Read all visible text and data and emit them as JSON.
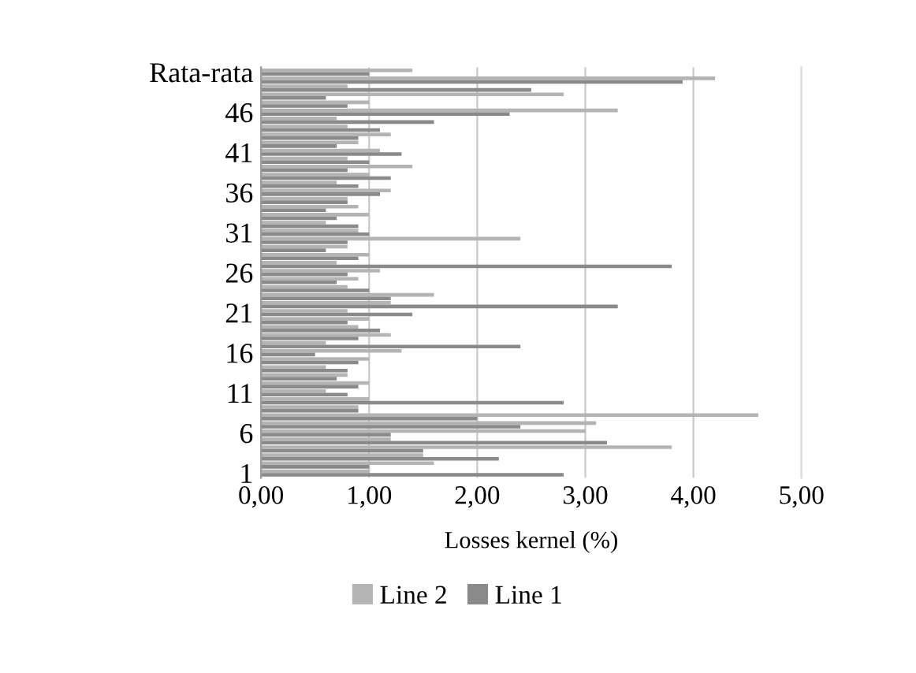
{
  "chart_data": {
    "type": "bar",
    "orientation": "horizontal",
    "xlabel": "Losses kernel (%)",
    "categories": [
      "Rata-rata",
      null,
      null,
      null,
      null,
      "46",
      null,
      null,
      null,
      null,
      "41",
      null,
      null,
      null,
      null,
      "36",
      null,
      null,
      null,
      null,
      "31",
      null,
      null,
      null,
      null,
      "26",
      null,
      null,
      null,
      null,
      "21",
      null,
      null,
      null,
      null,
      "16",
      null,
      null,
      null,
      null,
      "11",
      null,
      null,
      null,
      null,
      "6",
      null,
      null,
      null,
      null,
      "1"
    ],
    "series": [
      {
        "name": "Line 2",
        "color": "#b4b4b4",
        "values": [
          1.4,
          4.2,
          0.8,
          2.8,
          1.0,
          3.3,
          0.7,
          0.8,
          1.2,
          0.9,
          1.1,
          0.8,
          1.4,
          1.0,
          0.7,
          1.2,
          0.8,
          0.9,
          1.0,
          0.6,
          0.9,
          2.4,
          0.8,
          1.0,
          0.7,
          1.1,
          0.9,
          0.8,
          1.6,
          1.2,
          0.8,
          1.0,
          0.9,
          1.2,
          0.6,
          1.3,
          1.0,
          0.6,
          0.8,
          1.0,
          0.6,
          1.0,
          0.9,
          4.6,
          3.1,
          3.0,
          1.2,
          3.8,
          1.5,
          1.6,
          1.0
        ]
      },
      {
        "name": "Line 1",
        "color": "#8a8a8a",
        "values": [
          1.0,
          3.9,
          2.5,
          0.6,
          0.8,
          2.3,
          1.6,
          1.1,
          0.9,
          0.7,
          1.3,
          1.0,
          0.8,
          1.2,
          0.9,
          1.1,
          0.8,
          0.6,
          0.7,
          0.9,
          1.0,
          0.8,
          0.6,
          0.9,
          3.8,
          0.8,
          0.7,
          1.0,
          1.2,
          3.3,
          1.4,
          0.8,
          1.1,
          0.9,
          2.4,
          0.5,
          0.9,
          0.8,
          0.7,
          0.9,
          0.8,
          2.8,
          0.9,
          2.0,
          2.4,
          1.2,
          3.2,
          1.5,
          2.2,
          1.0,
          2.8
        ]
      }
    ],
    "xlim": [
      0,
      5
    ],
    "xticks": [
      {
        "value": 0,
        "label": "0,00"
      },
      {
        "value": 1,
        "label": "1,00"
      },
      {
        "value": 2,
        "label": "2,00"
      },
      {
        "value": 3,
        "label": "3,00"
      },
      {
        "value": 4,
        "label": "4,00"
      },
      {
        "value": 5,
        "label": "5,00"
      }
    ],
    "grid": "x",
    "legend": "bottom"
  }
}
